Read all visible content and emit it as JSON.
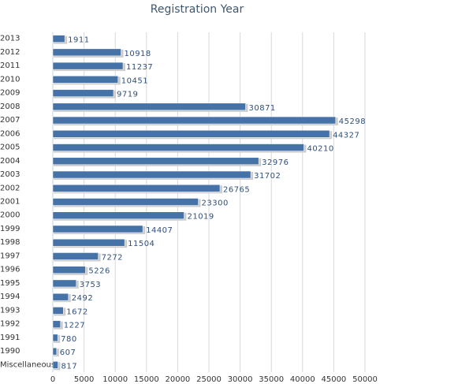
{
  "chart_data": {
    "type": "bar",
    "title": "Registration Year",
    "categories": [
      "2013",
      "2012",
      "2011",
      "2010",
      "2009",
      "2008",
      "2007",
      "2006",
      "2005",
      "2004",
      "2003",
      "2002",
      "2001",
      "2000",
      "1999",
      "1998",
      "1997",
      "1996",
      "1995",
      "1994",
      "1993",
      "1992",
      "1991",
      "1990",
      "Miscellaneous"
    ],
    "values": [
      1911,
      10918,
      11237,
      10451,
      9719,
      30871,
      45298,
      44327,
      40210,
      32976,
      31702,
      26765,
      23300,
      21019,
      14407,
      11504,
      7272,
      5226,
      3753,
      2492,
      1672,
      1227,
      780,
      607,
      817
    ],
    "color": "#4572a7",
    "xlim": [
      0,
      50000
    ],
    "xticks": [
      0,
      5000,
      10000,
      15000,
      20000,
      25000,
      30000,
      35000,
      40000,
      45000,
      50000
    ],
    "grid": true
  }
}
